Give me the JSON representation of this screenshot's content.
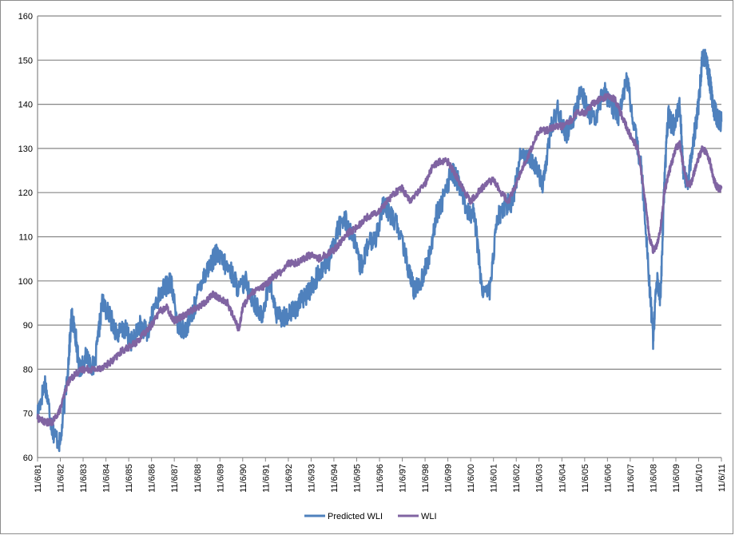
{
  "chart_data": {
    "type": "line",
    "title": "",
    "xlabel": "",
    "ylabel": "",
    "ylim": [
      60,
      160
    ],
    "yticks": [
      60,
      70,
      80,
      90,
      100,
      110,
      120,
      130,
      140,
      150,
      160
    ],
    "grid": true,
    "legend_position": "bottom",
    "x_start": "11/6/81",
    "x_end": "11/6/11",
    "x_tick_labels": [
      "11/6/81",
      "11/6/82",
      "11/6/83",
      "11/6/84",
      "11/6/85",
      "11/6/86",
      "11/6/87",
      "11/6/88",
      "11/6/89",
      "11/6/90",
      "11/6/91",
      "11/6/92",
      "11/6/93",
      "11/6/94",
      "11/6/95",
      "11/6/96",
      "11/6/97",
      "11/6/98",
      "11/6/99",
      "11/6/00",
      "11/6/01",
      "11/6/02",
      "11/6/03",
      "11/6/04",
      "11/6/05",
      "11/6/06",
      "11/6/07",
      "11/6/08",
      "11/6/09",
      "11/6/10",
      "11/6/11"
    ],
    "colors": {
      "predicted": "#4f81bd",
      "wli": "#8064a2",
      "grid": "#868686"
    },
    "series": [
      {
        "name": "Predicted WLI",
        "color": "#4f81bd",
        "points": [
          [
            "11/6/81",
            70
          ],
          [
            "3/6/82",
            77
          ],
          [
            "7/6/82",
            66
          ],
          [
            "11/6/82",
            63
          ],
          [
            "3/6/83",
            80
          ],
          [
            "5/6/83",
            92
          ],
          [
            "7/6/83",
            88
          ],
          [
            "9/6/83",
            80
          ],
          [
            "1/6/84",
            83
          ],
          [
            "5/6/84",
            80
          ],
          [
            "9/6/84",
            95
          ],
          [
            "1/6/85",
            92
          ],
          [
            "5/6/85",
            88
          ],
          [
            "9/6/85",
            89
          ],
          [
            "1/6/86",
            86
          ],
          [
            "5/6/86",
            90
          ],
          [
            "9/6/86",
            88
          ],
          [
            "1/6/87",
            95
          ],
          [
            "5/6/87",
            98
          ],
          [
            "9/6/87",
            100
          ],
          [
            "1/6/88",
            90
          ],
          [
            "5/6/88",
            89
          ],
          [
            "9/6/88",
            93
          ],
          [
            "1/6/89",
            100
          ],
          [
            "5/6/89",
            103
          ],
          [
            "9/6/89",
            106
          ],
          [
            "1/6/90",
            104
          ],
          [
            "5/6/90",
            102
          ],
          [
            "9/6/90",
            98
          ],
          [
            "1/6/91",
            100
          ],
          [
            "5/6/91",
            95
          ],
          [
            "9/6/91",
            92
          ],
          [
            "1/6/92",
            100
          ],
          [
            "5/6/92",
            92
          ],
          [
            "9/6/92",
            92
          ],
          [
            "1/6/93",
            93
          ],
          [
            "5/6/93",
            95
          ],
          [
            "9/6/93",
            97
          ],
          [
            "1/6/94",
            100
          ],
          [
            "5/6/94",
            103
          ],
          [
            "9/6/94",
            105
          ],
          [
            "1/6/95",
            112
          ],
          [
            "5/6/95",
            114
          ],
          [
            "9/6/95",
            110
          ],
          [
            "1/6/96",
            103
          ],
          [
            "5/6/96",
            108
          ],
          [
            "9/6/96",
            110
          ],
          [
            "1/6/97",
            117
          ],
          [
            "5/6/97",
            115
          ],
          [
            "9/6/97",
            112
          ],
          [
            "1/6/98",
            105
          ],
          [
            "5/6/98",
            98
          ],
          [
            "9/6/98",
            100
          ],
          [
            "1/6/99",
            105
          ],
          [
            "5/6/99",
            115
          ],
          [
            "9/6/99",
            119
          ],
          [
            "1/6/00",
            125
          ],
          [
            "5/6/00",
            122
          ],
          [
            "9/6/00",
            116
          ],
          [
            "1/6/01",
            115
          ],
          [
            "5/6/01",
            98
          ],
          [
            "9/6/01",
            98
          ],
          [
            "1/6/02",
            114
          ],
          [
            "5/6/02",
            117
          ],
          [
            "9/6/02",
            118
          ],
          [
            "1/6/03",
            128
          ],
          [
            "5/6/03",
            129
          ],
          [
            "9/6/03",
            126
          ],
          [
            "1/6/04",
            122
          ],
          [
            "5/6/04",
            134
          ],
          [
            "9/6/04",
            139
          ],
          [
            "1/6/05",
            133
          ],
          [
            "5/6/05",
            137
          ],
          [
            "9/6/05",
            143
          ],
          [
            "1/6/06",
            138
          ],
          [
            "5/6/06",
            137
          ],
          [
            "9/6/06",
            143
          ],
          [
            "1/6/07",
            140
          ],
          [
            "5/6/07",
            137
          ],
          [
            "9/6/07",
            146
          ],
          [
            "1/6/08",
            135
          ],
          [
            "5/6/08",
            125
          ],
          [
            "9/6/08",
            100
          ],
          [
            "11/6/08",
            87
          ],
          [
            "1/6/09",
            100
          ],
          [
            "3/6/09",
            96
          ],
          [
            "5/6/09",
            122
          ],
          [
            "7/6/09",
            138
          ],
          [
            "9/6/09",
            135
          ],
          [
            "11/6/09",
            136
          ],
          [
            "1/6/10",
            140
          ],
          [
            "3/6/10",
            125
          ],
          [
            "5/6/10",
            122
          ],
          [
            "7/6/10",
            128
          ],
          [
            "9/6/10",
            134
          ],
          [
            "11/6/10",
            140
          ],
          [
            "1/6/11",
            151
          ],
          [
            "3/6/11",
            150
          ],
          [
            "5/6/11",
            145
          ],
          [
            "7/6/11",
            139
          ],
          [
            "9/6/11",
            137
          ],
          [
            "11/6/11",
            136
          ]
        ]
      },
      {
        "name": "WLI",
        "color": "#8064a2",
        "points": [
          [
            "11/6/81",
            69
          ],
          [
            "3/6/82",
            68
          ],
          [
            "7/6/82",
            68
          ],
          [
            "11/6/82",
            71
          ],
          [
            "3/6/83",
            77
          ],
          [
            "7/6/83",
            79
          ],
          [
            "11/6/83",
            80
          ],
          [
            "3/6/84",
            80
          ],
          [
            "7/6/84",
            80
          ],
          [
            "11/6/84",
            81
          ],
          [
            "3/6/85",
            82
          ],
          [
            "7/6/85",
            84
          ],
          [
            "11/6/85",
            85
          ],
          [
            "3/6/86",
            86
          ],
          [
            "7/6/86",
            88
          ],
          [
            "11/6/86",
            90
          ],
          [
            "3/6/87",
            93
          ],
          [
            "7/6/87",
            94
          ],
          [
            "11/6/87",
            91
          ],
          [
            "3/6/88",
            92
          ],
          [
            "7/6/88",
            93
          ],
          [
            "11/6/88",
            94
          ],
          [
            "3/6/89",
            95
          ],
          [
            "7/6/89",
            97
          ],
          [
            "11/6/89",
            96
          ],
          [
            "3/6/90",
            95
          ],
          [
            "7/6/90",
            91
          ],
          [
            "9/6/90",
            89
          ],
          [
            "11/6/90",
            94
          ],
          [
            "3/6/91",
            97
          ],
          [
            "7/6/91",
            98
          ],
          [
            "11/6/91",
            99
          ],
          [
            "3/6/92",
            101
          ],
          [
            "7/6/92",
            102
          ],
          [
            "11/6/92",
            104
          ],
          [
            "3/6/93",
            104
          ],
          [
            "7/6/93",
            105
          ],
          [
            "11/6/93",
            106
          ],
          [
            "3/6/94",
            105
          ],
          [
            "7/6/94",
            106
          ],
          [
            "11/6/94",
            107
          ],
          [
            "3/6/95",
            109
          ],
          [
            "7/6/95",
            111
          ],
          [
            "11/6/95",
            112
          ],
          [
            "3/6/96",
            114
          ],
          [
            "7/6/96",
            115
          ],
          [
            "11/6/96",
            116
          ],
          [
            "3/6/97",
            118
          ],
          [
            "7/6/97",
            120
          ],
          [
            "11/6/97",
            121
          ],
          [
            "3/6/98",
            118
          ],
          [
            "7/6/98",
            120
          ],
          [
            "11/6/98",
            122
          ],
          [
            "3/6/99",
            126
          ],
          [
            "7/6/99",
            127
          ],
          [
            "11/6/99",
            127
          ],
          [
            "3/6/00",
            124
          ],
          [
            "7/6/00",
            121
          ],
          [
            "11/6/00",
            118
          ],
          [
            "3/6/01",
            120
          ],
          [
            "7/6/01",
            122
          ],
          [
            "11/6/01",
            123
          ],
          [
            "3/6/02",
            120
          ],
          [
            "7/6/02",
            118
          ],
          [
            "11/6/02",
            122
          ],
          [
            "3/6/03",
            126
          ],
          [
            "7/6/03",
            130
          ],
          [
            "11/6/03",
            134
          ],
          [
            "3/6/04",
            134
          ],
          [
            "7/6/04",
            135
          ],
          [
            "11/6/04",
            135
          ],
          [
            "3/6/05",
            136
          ],
          [
            "7/6/05",
            138
          ],
          [
            "11/6/05",
            138
          ],
          [
            "3/6/06",
            140
          ],
          [
            "7/6/06",
            141
          ],
          [
            "11/6/06",
            142
          ],
          [
            "3/6/07",
            141
          ],
          [
            "7/6/07",
            137
          ],
          [
            "11/6/07",
            133
          ],
          [
            "3/6/08",
            130
          ],
          [
            "7/6/08",
            118
          ],
          [
            "9/6/08",
            110
          ],
          [
            "11/6/08",
            107
          ],
          [
            "1/6/09",
            108
          ],
          [
            "3/6/09",
            112
          ],
          [
            "5/6/09",
            120
          ],
          [
            "7/6/09",
            124
          ],
          [
            "9/6/09",
            127
          ],
          [
            "11/6/09",
            130
          ],
          [
            "1/6/10",
            131
          ],
          [
            "3/6/10",
            126
          ],
          [
            "5/6/10",
            122
          ],
          [
            "7/6/10",
            122
          ],
          [
            "9/6/10",
            125
          ],
          [
            "11/6/10",
            128
          ],
          [
            "1/6/11",
            130
          ],
          [
            "3/6/11",
            129
          ],
          [
            "5/6/11",
            127
          ],
          [
            "7/6/11",
            123
          ],
          [
            "9/6/11",
            121
          ],
          [
            "11/6/11",
            121
          ]
        ]
      }
    ]
  }
}
